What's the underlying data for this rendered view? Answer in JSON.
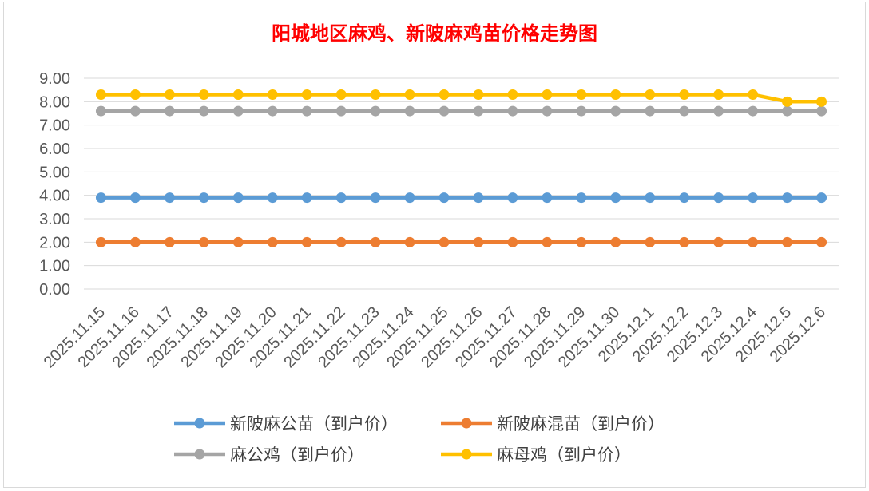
{
  "chart_data": {
    "type": "line",
    "title": "阳城地区麻鸡、新陂麻鸡苗价格走势图",
    "xlabel": "",
    "ylabel": "",
    "ylim": [
      0,
      9
    ],
    "y_ticks": [
      "0.00",
      "1.00",
      "2.00",
      "3.00",
      "4.00",
      "5.00",
      "6.00",
      "7.00",
      "8.00",
      "9.00"
    ],
    "grid": true,
    "legend_position": "bottom",
    "categories": [
      "2025.11.15",
      "2025.11.16",
      "2025.11.17",
      "2025.11.18",
      "2025.11.19",
      "2025.11.20",
      "2025.11.21",
      "2025.11.22",
      "2025.11.23",
      "2025.11.24",
      "2025.11.25",
      "2025.11.26",
      "2025.11.27",
      "2025.11.28",
      "2025.11.29",
      "2025.11.30",
      "2025.12.1",
      "2025.12.2",
      "2025.12.3",
      "2025.12.4",
      "2025.12.5",
      "2025.12.6"
    ],
    "series": [
      {
        "name": "新陂麻公苗（到户价）",
        "color": "#5b9bd5",
        "values": [
          3.9,
          3.9,
          3.9,
          3.9,
          3.9,
          3.9,
          3.9,
          3.9,
          3.9,
          3.9,
          3.9,
          3.9,
          3.9,
          3.9,
          3.9,
          3.9,
          3.9,
          3.9,
          3.9,
          3.9,
          3.9,
          3.9
        ]
      },
      {
        "name": "新陂麻混苗（到户价）",
        "color": "#ed7d31",
        "values": [
          2.0,
          2.0,
          2.0,
          2.0,
          2.0,
          2.0,
          2.0,
          2.0,
          2.0,
          2.0,
          2.0,
          2.0,
          2.0,
          2.0,
          2.0,
          2.0,
          2.0,
          2.0,
          2.0,
          2.0,
          2.0,
          2.0
        ]
      },
      {
        "name": "麻公鸡（到户价）",
        "color": "#a5a5a5",
        "values": [
          7.6,
          7.6,
          7.6,
          7.6,
          7.6,
          7.6,
          7.6,
          7.6,
          7.6,
          7.6,
          7.6,
          7.6,
          7.6,
          7.6,
          7.6,
          7.6,
          7.6,
          7.6,
          7.6,
          7.6,
          7.6,
          7.6
        ]
      },
      {
        "name": "麻母鸡（到户价）",
        "color": "#ffc000",
        "values": [
          8.3,
          8.3,
          8.3,
          8.3,
          8.3,
          8.3,
          8.3,
          8.3,
          8.3,
          8.3,
          8.3,
          8.3,
          8.3,
          8.3,
          8.3,
          8.3,
          8.3,
          8.3,
          8.3,
          8.3,
          8.0,
          8.0
        ]
      }
    ]
  }
}
